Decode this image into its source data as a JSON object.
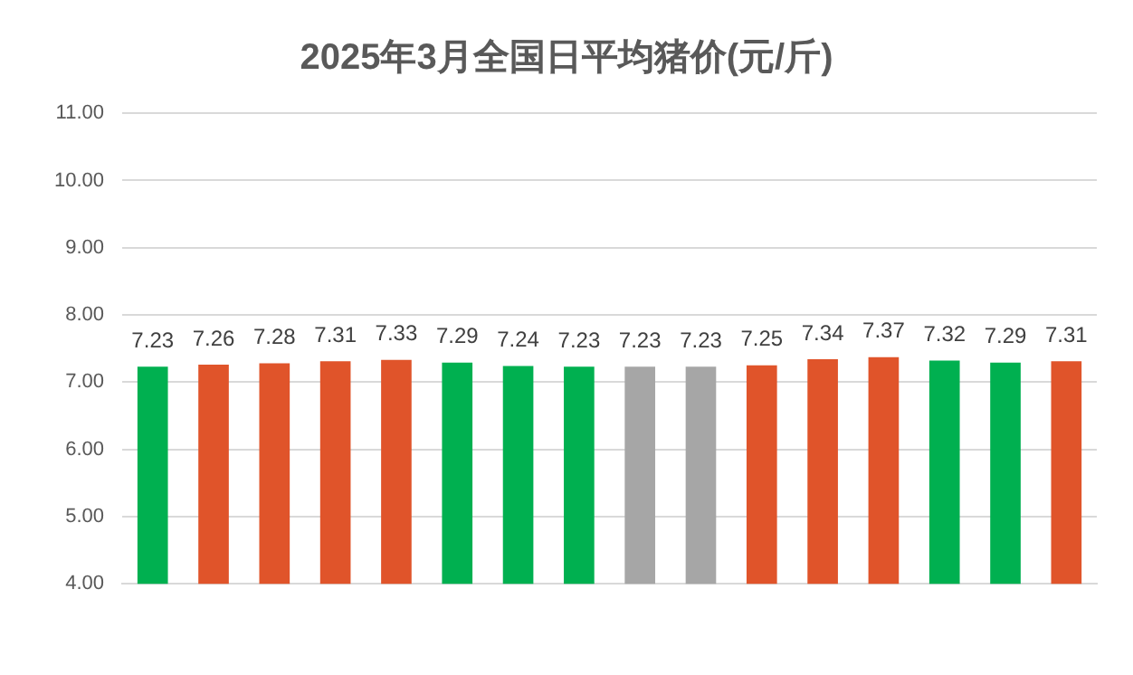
{
  "chart_data": {
    "type": "bar",
    "title": "2025年3月全国日平均猪价(元/斤)",
    "categories": [
      null,
      null,
      null,
      null,
      null,
      null,
      null,
      null,
      null,
      null,
      null,
      null,
      null,
      null,
      null,
      null
    ],
    "values": [
      7.23,
      7.26,
      7.28,
      7.31,
      7.33,
      7.29,
      7.24,
      7.23,
      7.23,
      7.23,
      7.25,
      7.34,
      7.37,
      7.32,
      7.29,
      7.31
    ],
    "colors": [
      "#00b050",
      "#e0542a",
      "#e0542a",
      "#e0542a",
      "#e0542a",
      "#00b050",
      "#00b050",
      "#00b050",
      "#a6a6a6",
      "#a6a6a6",
      "#e0542a",
      "#e0542a",
      "#e0542a",
      "#00b050",
      "#00b050",
      "#e0542a"
    ],
    "ylim": [
      4,
      11
    ],
    "yticks": [
      {
        "value": 4,
        "label": "4.00"
      },
      {
        "value": 5,
        "label": "5.00"
      },
      {
        "value": 6,
        "label": "6.00"
      },
      {
        "value": 7,
        "label": "7.00"
      },
      {
        "value": 8,
        "label": "8.00"
      },
      {
        "value": 9,
        "label": "9.00"
      },
      {
        "value": 10,
        "label": "10.00"
      },
      {
        "value": 11,
        "label": "11.00"
      }
    ],
    "grid": "y",
    "data_labels": true,
    "legend": false
  }
}
